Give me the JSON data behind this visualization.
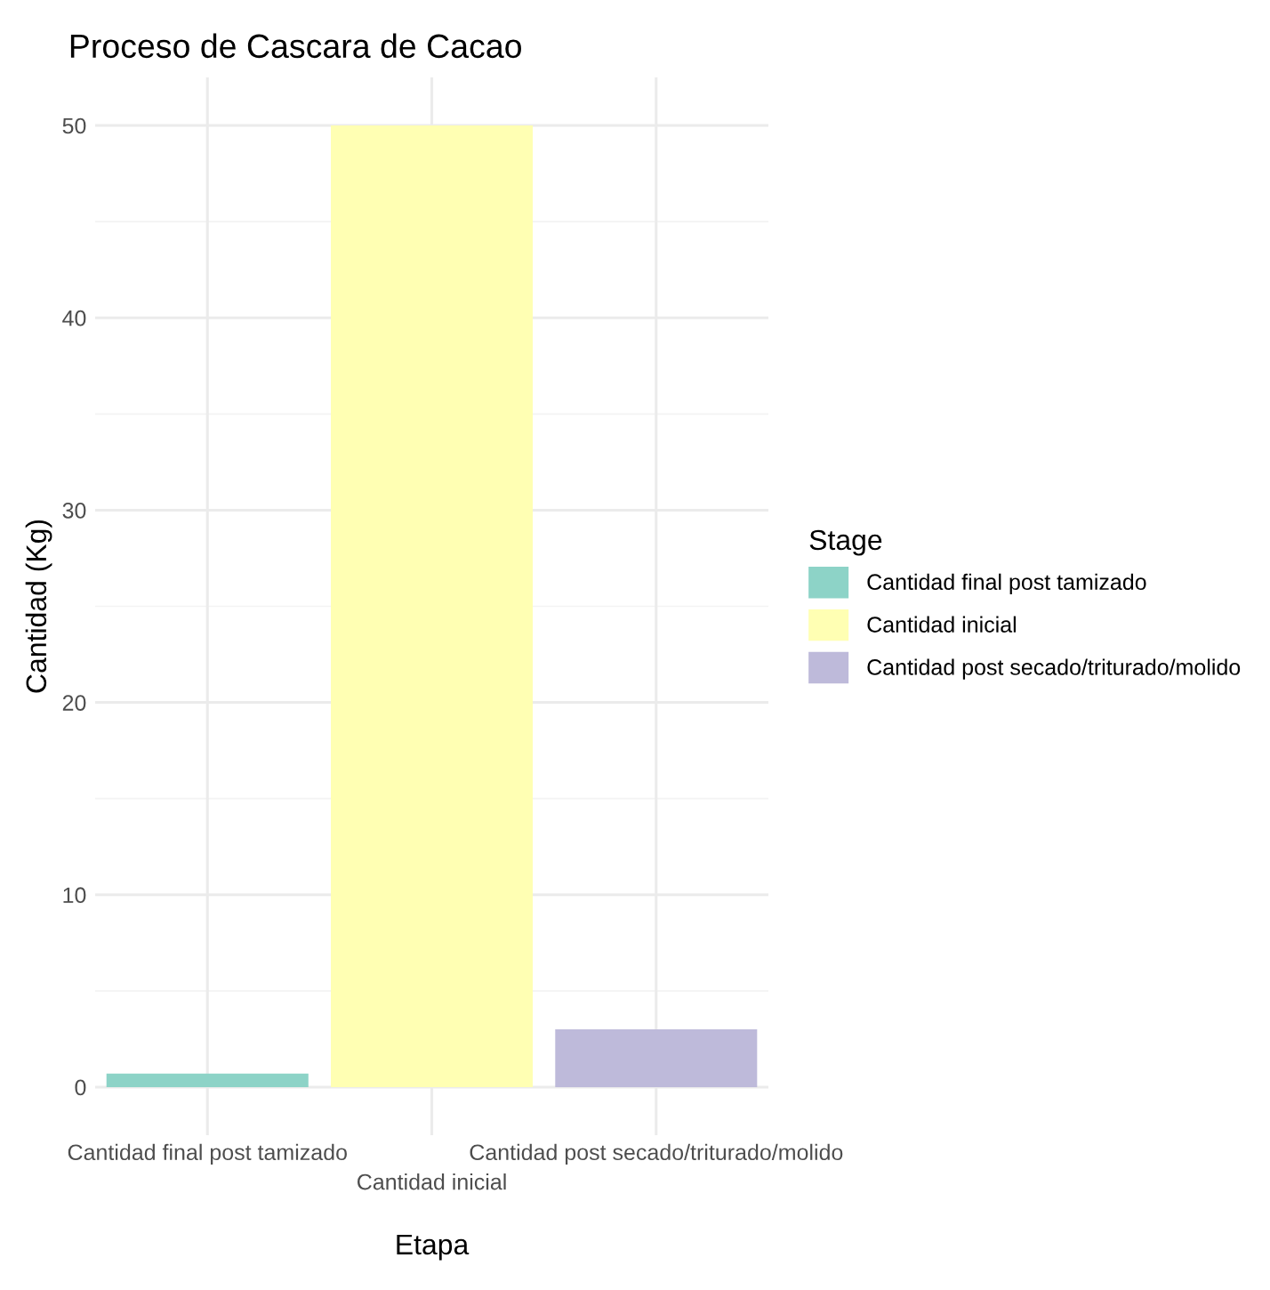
{
  "chart_data": {
    "type": "bar",
    "title": "Proceso de Cascara de Cacao",
    "xlabel": "Etapa",
    "ylabel": "Cantidad (Kg)",
    "legend_title": "Stage",
    "categories": [
      "Cantidad final post tamizado",
      "Cantidad inicial",
      "Cantidad post secado/triturado/molido"
    ],
    "series": [
      {
        "name": "Cantidad final post tamizado",
        "color": "#8dd3c7",
        "values": [
          0.7,
          null,
          null
        ]
      },
      {
        "name": "Cantidad inicial",
        "color": "#ffffb3",
        "values": [
          null,
          50,
          null
        ]
      },
      {
        "name": "Cantidad post secado/triturado/molido",
        "color": "#bebada",
        "values": [
          null,
          null,
          3.0
        ]
      }
    ],
    "ylim": [
      -2.5,
      52.5
    ],
    "yticks": [
      0,
      10,
      20,
      30,
      40,
      50
    ],
    "grid": true,
    "legend": "right"
  }
}
